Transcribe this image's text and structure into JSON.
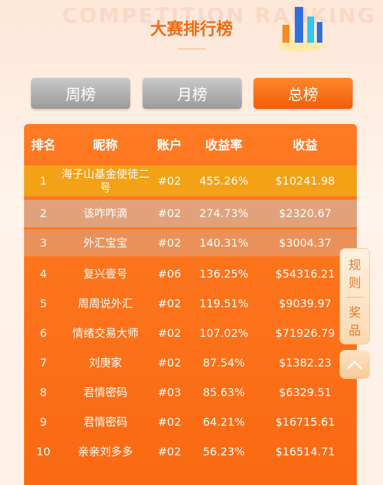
{
  "header": {
    "title": "大赛排行榜",
    "watermark": "COMPETITION RANKING"
  },
  "tabs": [
    "周榜",
    "月榜",
    "总榜"
  ],
  "table": {
    "columns": [
      "排名",
      "昵称",
      "账户",
      "收益率",
      "收益"
    ],
    "rows": [
      [
        "1",
        "海子山基金使徒二号",
        "#02",
        "455.26%",
        "$10241.98"
      ],
      [
        "2",
        "该咋咋滴",
        "#02",
        "274.73%",
        "$2320.67"
      ],
      [
        "3",
        "外汇宝宝",
        "#02",
        "140.31%",
        "$3004.37"
      ],
      [
        "4",
        "复兴壹号",
        "#06",
        "136.25%",
        "$54316.21"
      ],
      [
        "5",
        "周周说外汇",
        "#02",
        "119.51%",
        "$9039.97"
      ],
      [
        "6",
        "情绪交易大师",
        "#02",
        "107.02%",
        "$71926.79"
      ],
      [
        "7",
        "刘庚家",
        "#02",
        "87.54%",
        "$1382.23"
      ],
      [
        "8",
        "君情密码",
        "#03",
        "85.63%",
        "$6329.51"
      ],
      [
        "9",
        "君情密码",
        "#02",
        "64.21%",
        "$16715.61"
      ],
      [
        "10",
        "亲亲刘多多",
        "#02",
        "56.23%",
        "$16514.71"
      ]
    ]
  },
  "side": {
    "rules": "规则",
    "prizes": "奖品"
  }
}
